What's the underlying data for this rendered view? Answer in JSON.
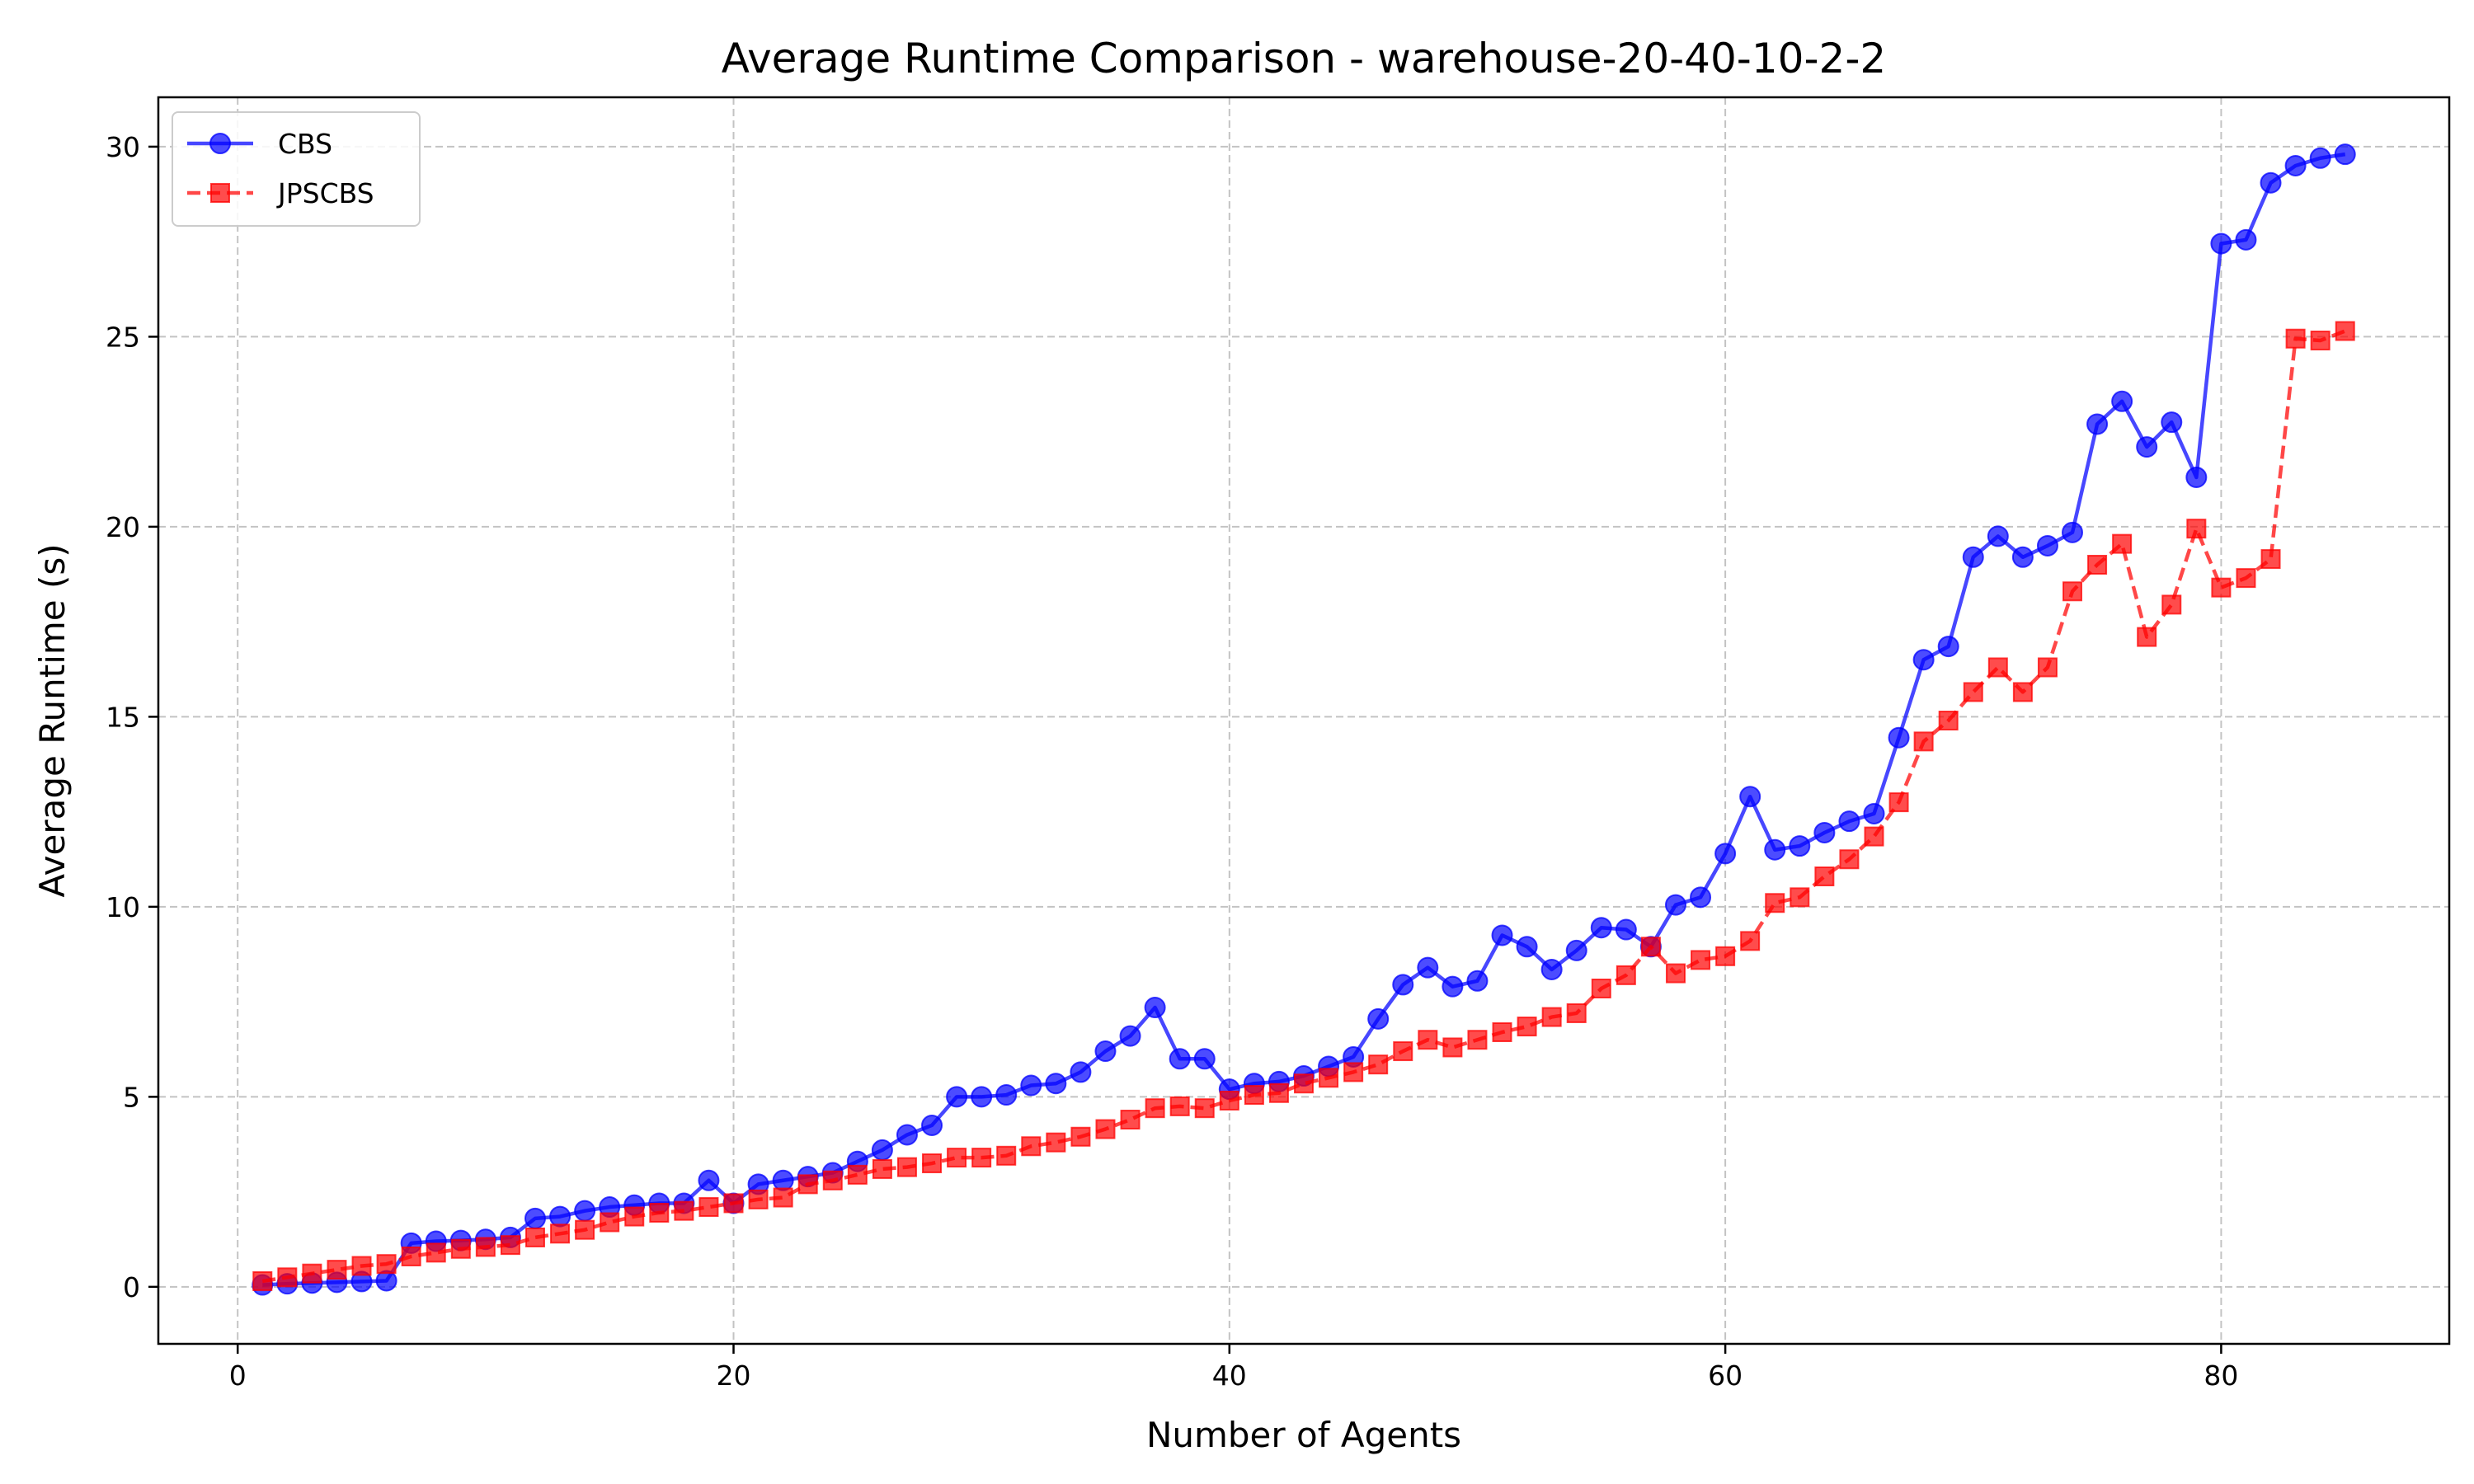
{
  "chart_data": {
    "type": "line",
    "title": "Average Runtime Comparison - warehouse-20-40-10-2-2",
    "xlabel": "Number of Agents",
    "ylabel": "Average Runtime (s)",
    "xlim": [
      -3.2,
      89.2
    ],
    "ylim": [
      -1.5,
      31.3
    ],
    "xticks": [
      0,
      20,
      40,
      60,
      80
    ],
    "yticks": [
      0,
      5,
      10,
      15,
      20,
      25,
      30
    ],
    "grid": true,
    "legend_position": "top-left",
    "x": [
      1,
      2,
      3,
      4,
      5,
      6,
      7,
      8,
      9,
      10,
      11,
      12,
      13,
      14,
      15,
      16,
      17,
      18,
      19,
      20,
      21,
      22,
      23,
      24,
      25,
      26,
      27,
      28,
      29,
      30,
      31,
      32,
      33,
      34,
      35,
      36,
      37,
      38,
      39,
      40,
      41,
      42,
      43,
      44,
      45,
      46,
      47,
      48,
      49,
      50,
      51,
      52,
      53,
      54,
      55,
      56,
      57,
      58,
      59,
      60,
      61,
      62,
      63,
      64,
      65,
      66,
      67,
      68,
      69,
      70,
      71,
      72,
      73,
      74,
      75,
      76,
      77,
      78,
      79,
      80,
      81,
      82,
      83,
      84,
      85
    ],
    "series": [
      {
        "name": "CBS",
        "color": "#0000ff",
        "marker": "circle",
        "linestyle": "solid",
        "values": [
          0.05,
          0.08,
          0.1,
          0.12,
          0.14,
          0.16,
          1.15,
          1.2,
          1.22,
          1.25,
          1.3,
          1.8,
          1.85,
          2.0,
          2.1,
          2.15,
          2.2,
          2.2,
          2.8,
          2.2,
          2.7,
          2.8,
          2.9,
          3.0,
          3.3,
          3.6,
          4.0,
          4.25,
          5.0,
          5.0,
          5.05,
          5.3,
          5.35,
          5.65,
          6.2,
          6.6,
          7.35,
          6.0,
          6.0,
          5.2,
          5.35,
          5.4,
          5.55,
          5.8,
          6.05,
          7.05,
          7.95,
          8.4,
          7.9,
          8.05,
          9.25,
          8.95,
          8.35,
          8.85,
          9.45,
          9.4,
          8.95,
          10.05,
          10.25,
          11.4,
          12.9,
          11.5,
          11.6,
          11.95,
          12.25,
          12.45,
          14.45,
          16.5,
          16.85,
          19.2,
          19.75,
          19.2,
          19.5,
          19.85,
          22.7,
          23.3,
          22.1,
          22.75,
          21.3,
          27.45,
          27.55,
          29.05,
          29.5,
          29.7,
          29.8
        ]
      },
      {
        "name": "JPSCBS",
        "color": "#ff0000",
        "marker": "square",
        "linestyle": "dashed",
        "values": [
          0.15,
          0.25,
          0.35,
          0.45,
          0.55,
          0.6,
          0.8,
          0.9,
          1.0,
          1.05,
          1.1,
          1.3,
          1.4,
          1.5,
          1.7,
          1.85,
          1.95,
          2.0,
          2.1,
          2.2,
          2.3,
          2.35,
          2.7,
          2.8,
          2.95,
          3.1,
          3.15,
          3.25,
          3.4,
          3.4,
          3.45,
          3.7,
          3.8,
          3.95,
          4.15,
          4.4,
          4.7,
          4.75,
          4.7,
          4.9,
          5.05,
          5.1,
          5.35,
          5.5,
          5.65,
          5.85,
          6.2,
          6.5,
          6.3,
          6.5,
          6.7,
          6.85,
          7.1,
          7.2,
          7.85,
          8.2,
          8.95,
          8.25,
          8.6,
          8.7,
          9.1,
          10.1,
          10.25,
          10.8,
          11.25,
          11.85,
          12.75,
          14.35,
          14.9,
          15.65,
          16.3,
          15.65,
          16.3,
          18.3,
          19.0,
          19.55,
          17.1,
          17.95,
          19.95,
          18.4,
          18.65,
          19.15,
          24.95,
          24.9,
          25.15
        ]
      }
    ]
  }
}
